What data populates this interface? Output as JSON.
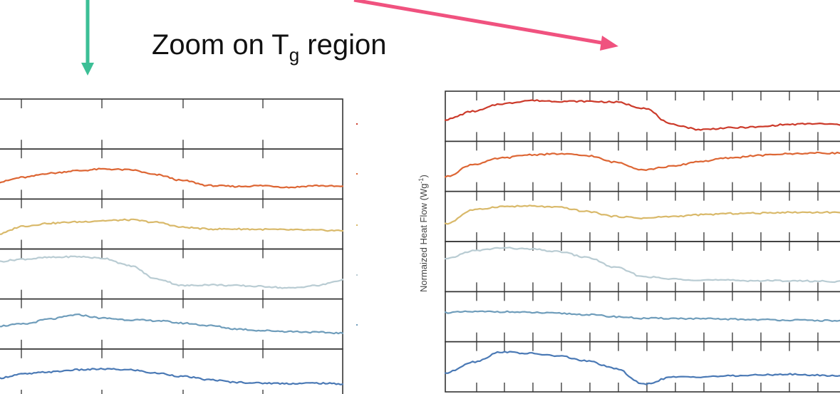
{
  "heading": {
    "main": "Zoom on T",
    "subscript": "g",
    "suffix": " region"
  },
  "colors": {
    "teal_arrow": "#3cbf96",
    "pink_arrow": "#f0527f",
    "axis": "#333333",
    "series": [
      "#cc3a2a",
      "#dd6634",
      "#d9b96a",
      "#b9ccd3",
      "#6f9dbb",
      "#4a79b5"
    ]
  },
  "chart_data": [
    {
      "type": "line",
      "title": "",
      "xlabel": "",
      "ylabel": "",
      "panels": 6,
      "series": [
        {
          "color": "#cc3a2a",
          "values": []
        },
        {
          "color": "#dd6634",
          "values": [
            0.3,
            0.42,
            0.52,
            0.58,
            0.62,
            0.6,
            0.48,
            0.34,
            0.22,
            0.2,
            0.22,
            0.18,
            0.22,
            0.2
          ]
        },
        {
          "color": "#d9b96a",
          "values": [
            0.25,
            0.45,
            0.52,
            0.55,
            0.58,
            0.6,
            0.54,
            0.42,
            0.38,
            0.38,
            0.37,
            0.36,
            0.35,
            0.34
          ]
        },
        {
          "color": "#b9ccd3",
          "values": [
            0.8,
            0.86,
            0.9,
            0.92,
            0.88,
            0.7,
            0.38,
            0.22,
            0.24,
            0.22,
            0.2,
            0.16,
            0.22,
            0.35
          ]
        },
        {
          "color": "#6f9dbb",
          "values": [
            0.45,
            0.5,
            0.62,
            0.72,
            0.64,
            0.6,
            0.58,
            0.52,
            0.46,
            0.38,
            0.34,
            0.32,
            0.3,
            0.28
          ]
        },
        {
          "color": "#4a79b5",
          "values": [
            0.4,
            0.5,
            0.55,
            0.6,
            0.62,
            0.6,
            0.52,
            0.44,
            0.36,
            0.3,
            0.28,
            0.27,
            0.28,
            0.26
          ]
        }
      ]
    },
    {
      "type": "line",
      "title": "",
      "xlabel": "",
      "ylabel": "Normaized Heat Flow (Wg-1)",
      "ylabel_main": "Normaized Heat Flow (Wg",
      "ylabel_sup": "-1",
      "ylabel_close": ")",
      "panels": 6,
      "series": [
        {
          "color": "#cc3a2a",
          "values": [
            0.42,
            0.62,
            0.8,
            0.88,
            0.86,
            0.86,
            0.84,
            0.7,
            0.3,
            0.18,
            0.22,
            0.24,
            0.3,
            0.32,
            0.3
          ]
        },
        {
          "color": "#dd6634",
          "values": [
            0.25,
            0.55,
            0.7,
            0.78,
            0.8,
            0.76,
            0.6,
            0.42,
            0.5,
            0.62,
            0.7,
            0.76,
            0.8,
            0.82,
            0.82
          ]
        },
        {
          "color": "#d9b96a",
          "values": [
            0.32,
            0.66,
            0.74,
            0.75,
            0.72,
            0.62,
            0.5,
            0.46,
            0.5,
            0.54,
            0.57,
            0.58,
            0.6,
            0.6,
            0.6
          ]
        },
        {
          "color": "#b9ccd3",
          "values": [
            0.68,
            0.88,
            0.95,
            0.92,
            0.86,
            0.72,
            0.48,
            0.26,
            0.2,
            0.18,
            0.17,
            0.16,
            0.16,
            0.15,
            0.14
          ]
        },
        {
          "color": "#6f9dbb",
          "values": [
            0.6,
            0.62,
            0.62,
            0.6,
            0.58,
            0.55,
            0.5,
            0.46,
            0.46,
            0.45,
            0.44,
            0.43,
            0.42,
            0.41,
            0.4
          ]
        },
        {
          "color": "#4a79b5",
          "values": [
            0.35,
            0.62,
            0.86,
            0.82,
            0.76,
            0.64,
            0.46,
            0.08,
            0.25,
            0.26,
            0.28,
            0.3,
            0.32,
            0.3,
            0.28
          ]
        }
      ]
    }
  ]
}
